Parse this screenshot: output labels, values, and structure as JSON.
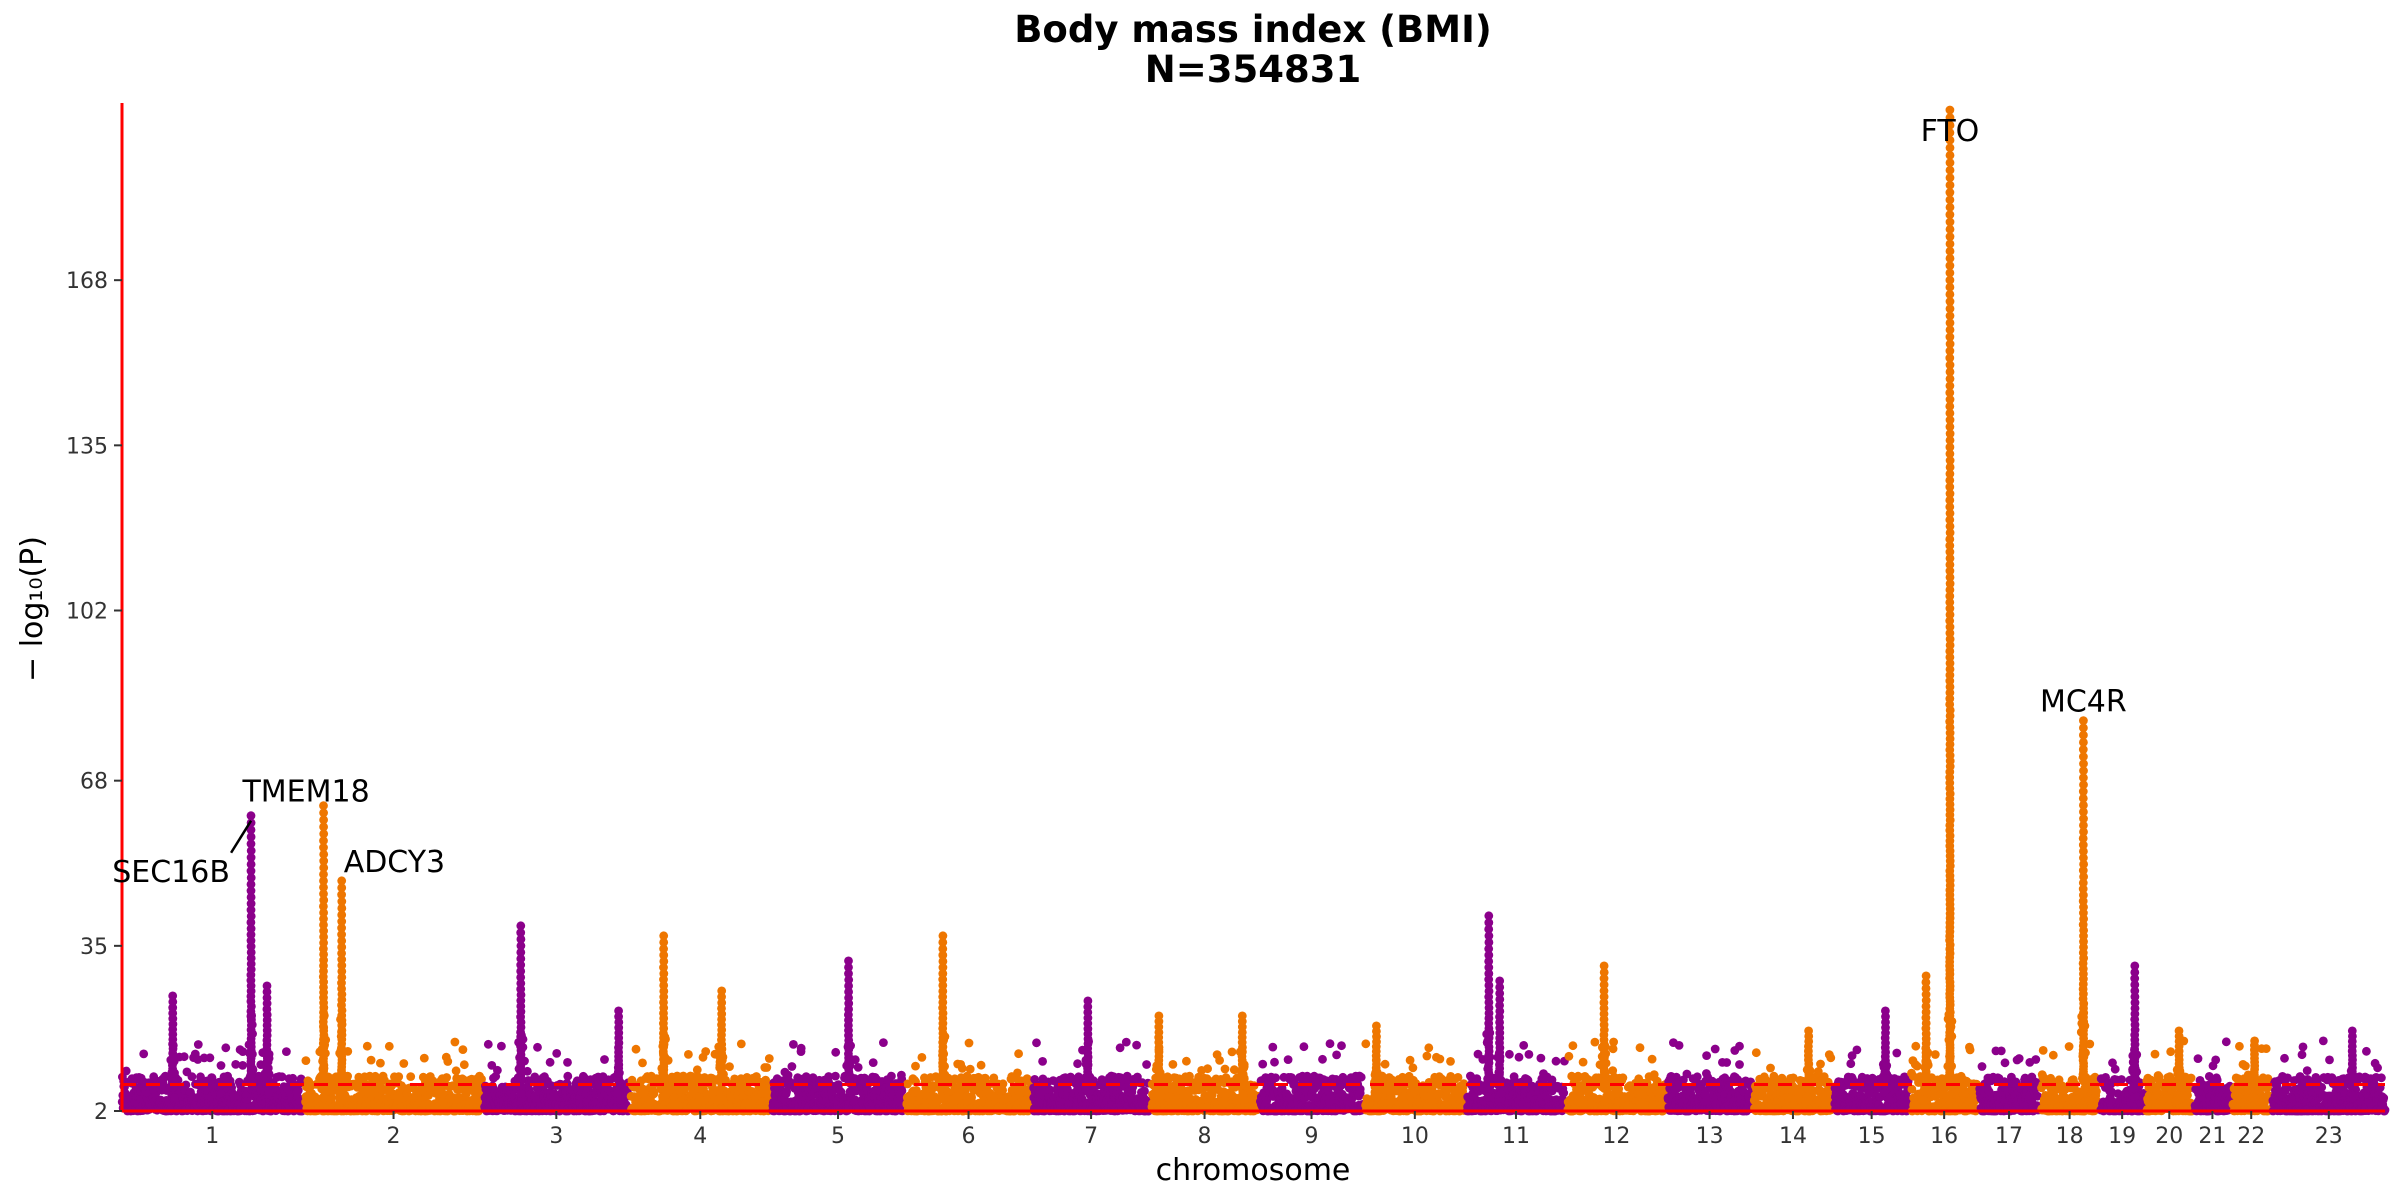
{
  "chart_data": {
    "type": "scatter",
    "subtype": "manhattan",
    "title": "Body mass index (BMI)",
    "subtitle": "N=354831",
    "xlabel": "chromosome",
    "ylabel": "− log₁₀(P)",
    "y_ticks": [
      2,
      35,
      68,
      102,
      135,
      168
    ],
    "ylim": [
      2,
      203
    ],
    "x_ticks": [
      "1",
      "2",
      "3",
      "4",
      "5",
      "6",
      "7",
      "8",
      "9",
      "10",
      "11",
      "12",
      "13",
      "14",
      "15",
      "16",
      "17",
      "18",
      "19",
      "20",
      "21",
      "22",
      "23"
    ],
    "significance_threshold": 7.3,
    "grid": false,
    "colors": {
      "odd": "#8B008B",
      "even": "#EE7600",
      "threshold": "#FF0000",
      "axis": "#FF0000"
    },
    "chromosomes": [
      {
        "chr": "1",
        "size": 249,
        "color": "odd"
      },
      {
        "chr": "2",
        "size": 243,
        "color": "even"
      },
      {
        "chr": "3",
        "size": 198,
        "color": "odd"
      },
      {
        "chr": "4",
        "size": 191,
        "color": "even"
      },
      {
        "chr": "5",
        "size": 181,
        "color": "odd"
      },
      {
        "chr": "6",
        "size": 171,
        "color": "even"
      },
      {
        "chr": "7",
        "size": 159,
        "color": "odd"
      },
      {
        "chr": "8",
        "size": 146,
        "color": "even"
      },
      {
        "chr": "9",
        "size": 141,
        "color": "odd"
      },
      {
        "chr": "10",
        "size": 136,
        "color": "even"
      },
      {
        "chr": "11",
        "size": 135,
        "color": "odd"
      },
      {
        "chr": "12",
        "size": 134,
        "color": "even"
      },
      {
        "chr": "13",
        "size": 115,
        "color": "odd"
      },
      {
        "chr": "14",
        "size": 107,
        "color": "even"
      },
      {
        "chr": "15",
        "size": 102,
        "color": "odd"
      },
      {
        "chr": "16",
        "size": 90,
        "color": "even"
      },
      {
        "chr": "17",
        "size": 81,
        "color": "odd"
      },
      {
        "chr": "18",
        "size": 78,
        "color": "even"
      },
      {
        "chr": "19",
        "size": 59,
        "color": "odd"
      },
      {
        "chr": "20",
        "size": 63,
        "color": "even"
      },
      {
        "chr": "21",
        "size": 48,
        "color": "odd"
      },
      {
        "chr": "22",
        "size": 51,
        "color": "even"
      },
      {
        "chr": "23",
        "size": 155,
        "color": "odd"
      }
    ],
    "peaks": [
      {
        "chr": "1",
        "pos": 70,
        "max": 25
      },
      {
        "chr": "1",
        "pos": 178,
        "max": 61,
        "gene": "TMEM18"
      },
      {
        "chr": "1",
        "pos": 200,
        "max": 27
      },
      {
        "chr": "2",
        "pos": 25,
        "max": 63
      },
      {
        "chr": "2",
        "pos": 50,
        "max": 48,
        "gene": "ADCY3"
      },
      {
        "chr": "3",
        "pos": 50,
        "max": 39
      },
      {
        "chr": "3",
        "pos": 185,
        "max": 22
      },
      {
        "chr": "4",
        "pos": 45,
        "max": 37
      },
      {
        "chr": "4",
        "pos": 125,
        "max": 26
      },
      {
        "chr": "5",
        "pos": 105,
        "max": 32
      },
      {
        "chr": "6",
        "pos": 50,
        "max": 37
      },
      {
        "chr": "7",
        "pos": 75,
        "max": 24
      },
      {
        "chr": "8",
        "pos": 10,
        "max": 21
      },
      {
        "chr": "8",
        "pos": 125,
        "max": 21
      },
      {
        "chr": "10",
        "pos": 15,
        "max": 19
      },
      {
        "chr": "11",
        "pos": 30,
        "max": 41
      },
      {
        "chr": "11",
        "pos": 45,
        "max": 28
      },
      {
        "chr": "12",
        "pos": 50,
        "max": 31
      },
      {
        "chr": "14",
        "pos": 75,
        "max": 18
      },
      {
        "chr": "15",
        "pos": 70,
        "max": 22
      },
      {
        "chr": "16",
        "pos": 20,
        "max": 29
      },
      {
        "chr": "16",
        "pos": 53,
        "max": 202,
        "gene": "FTO"
      },
      {
        "chr": "18",
        "pos": 58,
        "max": 80,
        "gene": "MC4R"
      },
      {
        "chr": "19",
        "pos": 47,
        "max": 31
      },
      {
        "chr": "20",
        "pos": 45,
        "max": 18
      },
      {
        "chr": "22",
        "pos": 30,
        "max": 16
      },
      {
        "chr": "23",
        "pos": 110,
        "max": 18
      }
    ],
    "annotations": [
      {
        "label": "TMEM18",
        "chr": "1",
        "pos": 178,
        "y": 66
      },
      {
        "label": "SEC16B",
        "chr": "1",
        "pos": 178,
        "y": 50,
        "pointer_to_y": 60
      },
      {
        "label": "ADCY3",
        "chr": "2",
        "pos": 50,
        "y": 52
      },
      {
        "label": "FTO",
        "chr": "16",
        "pos": 53,
        "y": 198
      },
      {
        "label": "MC4R",
        "chr": "18",
        "pos": 58,
        "y": 84
      }
    ]
  }
}
